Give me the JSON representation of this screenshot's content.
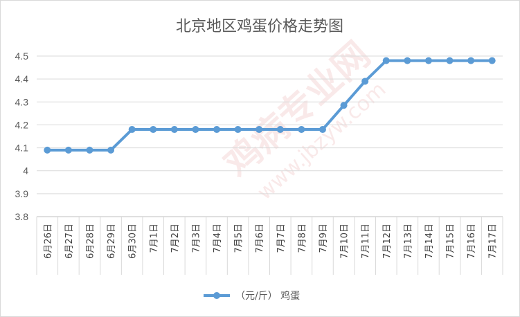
{
  "chart_data": {
    "type": "line",
    "title": "北京地区鸡蛋价格走势图",
    "xlabel": "",
    "ylabel": "",
    "categories": [
      "6月26日",
      "6月27日",
      "6月28日",
      "6月29日",
      "6月30日",
      "7月1日",
      "7月2日",
      "7月3日",
      "7月4日",
      "7月5日",
      "7月6日",
      "7月7日",
      "7月8日",
      "7月9日",
      "7月10日",
      "7月11日",
      "7月12日",
      "7月13日",
      "7月14日",
      "7月15日",
      "7月16日",
      "7月17日"
    ],
    "series": [
      {
        "name": "（元/斤） 鸡蛋",
        "values": [
          4.09,
          4.09,
          4.09,
          4.09,
          4.18,
          4.18,
          4.18,
          4.18,
          4.18,
          4.18,
          4.18,
          4.18,
          4.18,
          4.18,
          4.285,
          4.39,
          4.48,
          4.48,
          4.48,
          4.48,
          4.48,
          4.48
        ],
        "color": "#5b9bd5"
      }
    ],
    "ylim": [
      3.8,
      4.5
    ],
    "yticks": [
      "3.8",
      "3.9",
      "4",
      "4.1",
      "4.2",
      "4.3",
      "4.4",
      "4.5"
    ],
    "grid": "horizontal",
    "legend": "bottom",
    "watermark": [
      "鸡病专业网",
      "www.jbzyw.com"
    ]
  }
}
